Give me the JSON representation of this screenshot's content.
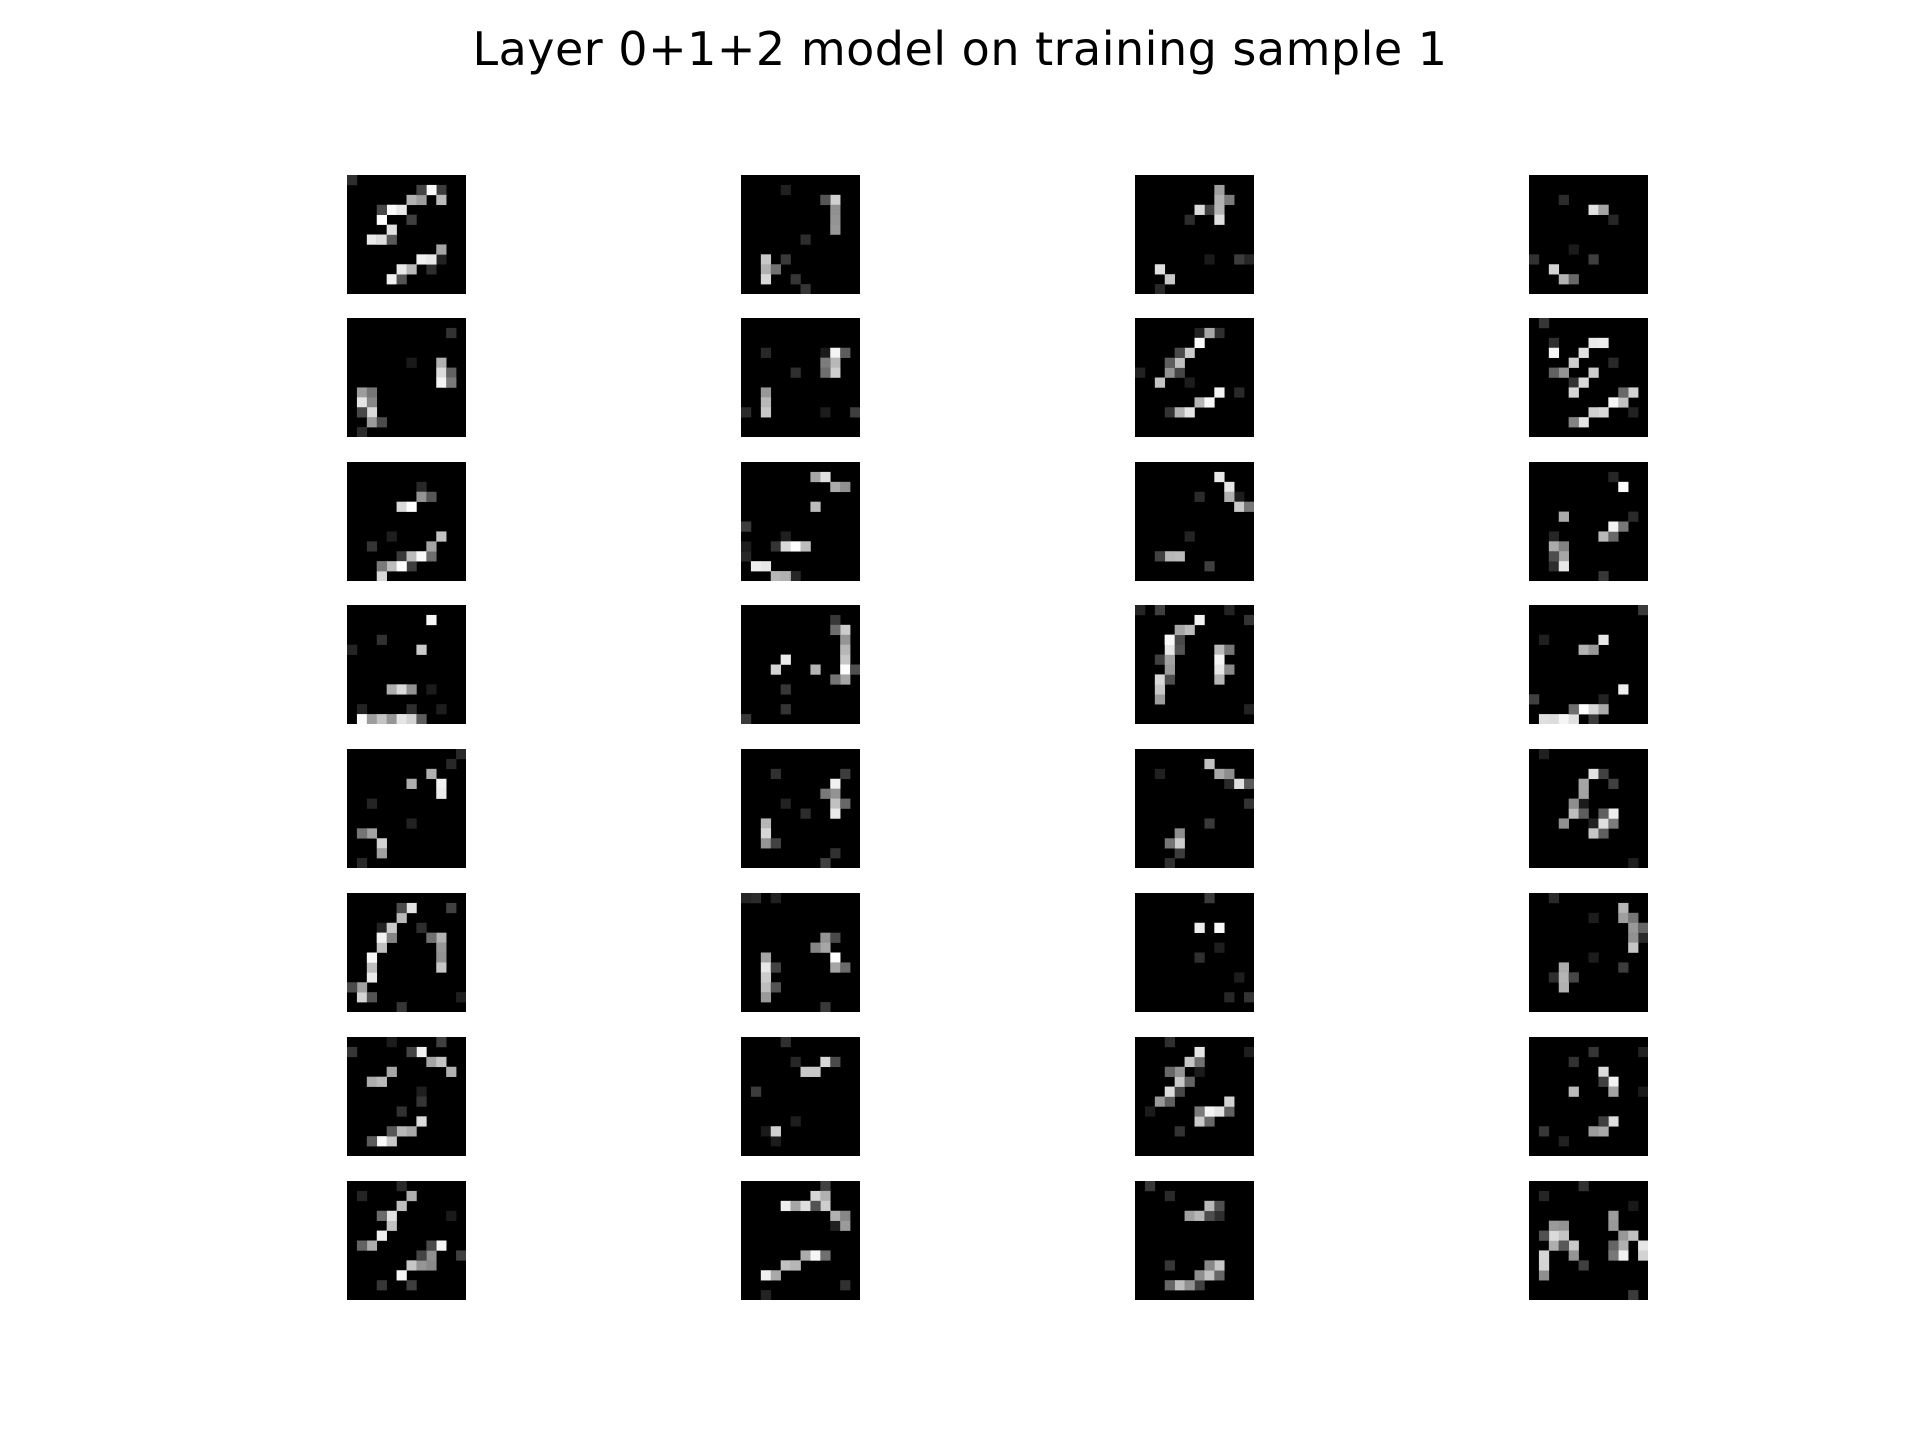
{
  "figure": {
    "title": "Layer 0+1+2 model on training sample 1",
    "layout": {
      "rows": 8,
      "cols": 4
    },
    "image_style": {
      "background": "#000000",
      "colormap": "gray",
      "pixel_resolution": 12
    },
    "panels": [
      {
        "row": 0,
        "col": 0,
        "strokes": [
          [
            [
              3,
              4
            ],
            [
              8,
              1
            ]
          ],
          [
            [
              4,
              10
            ],
            [
              9,
              7
            ]
          ],
          [
            [
              2,
              6
            ],
            [
              4,
              5
            ]
          ]
        ],
        "dots": [
          [
            9,
            2
          ]
        ]
      },
      {
        "row": 0,
        "col": 1,
        "strokes": [
          [
            [
              9,
              2
            ],
            [
              9,
              5
            ]
          ],
          [
            [
              2,
              8
            ],
            [
              2,
              10
            ]
          ]
        ],
        "dots": []
      },
      {
        "row": 0,
        "col": 2,
        "strokes": [
          [
            [
              8,
              1
            ],
            [
              8,
              4
            ]
          ],
          [
            [
              2,
              9
            ],
            [
              3,
              10
            ]
          ]
        ],
        "dots": [
          [
            6,
            3
          ]
        ]
      },
      {
        "row": 0,
        "col": 3,
        "strokes": [
          [
            [
              6,
              3
            ],
            [
              7,
              3
            ]
          ],
          [
            [
              2,
              9
            ],
            [
              3,
              10
            ]
          ]
        ],
        "dots": []
      },
      {
        "row": 1,
        "col": 0,
        "strokes": [
          [
            [
              9,
              4
            ],
            [
              9,
              6
            ]
          ],
          [
            [
              1,
              7
            ],
            [
              2,
              10
            ]
          ]
        ],
        "dots": []
      },
      {
        "row": 1,
        "col": 1,
        "strokes": [
          [
            [
              9,
              3
            ],
            [
              9,
              5
            ]
          ],
          [
            [
              2,
              7
            ],
            [
              2,
              9
            ]
          ]
        ],
        "dots": []
      },
      {
        "row": 1,
        "col": 2,
        "strokes": [
          [
            [
              2,
              6
            ],
            [
              7,
              1
            ]
          ],
          [
            [
              4,
              9
            ],
            [
              8,
              7
            ]
          ]
        ],
        "dots": []
      },
      {
        "row": 1,
        "col": 3,
        "strokes": [
          [
            [
              3,
              5
            ],
            [
              6,
              2
            ]
          ],
          [
            [
              5,
              10
            ],
            [
              10,
              7
            ]
          ],
          [
            [
              4,
              7
            ],
            [
              6,
              5
            ]
          ]
        ],
        "dots": [
          [
            7,
            2
          ],
          [
            2,
            3
          ]
        ]
      },
      {
        "row": 2,
        "col": 0,
        "strokes": [
          [
            [
              3,
              11
            ],
            [
              8,
              8
            ]
          ],
          [
            [
              5,
              4
            ],
            [
              7,
              3
            ]
          ]
        ],
        "dots": [
          [
            9,
            7
          ]
        ]
      },
      {
        "row": 2,
        "col": 1,
        "strokes": [
          [
            [
              7,
              1
            ],
            [
              10,
              2
            ]
          ],
          [
            [
              1,
              10
            ],
            [
              4,
              11
            ]
          ],
          [
            [
              4,
              8
            ],
            [
              6,
              8
            ]
          ]
        ],
        "dots": [
          [
            7,
            4
          ]
        ]
      },
      {
        "row": 2,
        "col": 2,
        "strokes": [
          [
            [
              8,
              1
            ],
            [
              10,
              4
            ]
          ],
          [
            [
              3,
              9
            ],
            [
              4,
              9
            ]
          ]
        ],
        "dots": []
      },
      {
        "row": 2,
        "col": 3,
        "strokes": [
          [
            [
              7,
              7
            ],
            [
              8,
              6
            ]
          ],
          [
            [
              2,
              8
            ],
            [
              3,
              10
            ]
          ]
        ],
        "dots": [
          [
            9,
            2
          ],
          [
            3,
            5
          ]
        ]
      },
      {
        "row": 3,
        "col": 0,
        "strokes": [
          [
            [
              1,
              11
            ],
            [
              6,
              11
            ]
          ],
          [
            [
              4,
              8
            ],
            [
              6,
              8
            ]
          ]
        ],
        "dots": [
          [
            7,
            4
          ],
          [
            8,
            1
          ]
        ]
      },
      {
        "row": 3,
        "col": 1,
        "strokes": [
          [
            [
              10,
              2
            ],
            [
              10,
              7
            ]
          ],
          [
            [
              3,
              6
            ],
            [
              4,
              5
            ]
          ]
        ],
        "dots": [
          [
            7,
            6
          ]
        ]
      },
      {
        "row": 3,
        "col": 2,
        "strokes": [
          [
            [
              2,
              9
            ],
            [
              3,
              3
            ]
          ],
          [
            [
              3,
              3
            ],
            [
              6,
              1
            ]
          ],
          [
            [
              8,
              4
            ],
            [
              8,
              7
            ]
          ]
        ],
        "dots": []
      },
      {
        "row": 3,
        "col": 3,
        "strokes": [
          [
            [
              1,
              11
            ],
            [
              7,
              10
            ]
          ],
          [
            [
              5,
              4
            ],
            [
              7,
              3
            ]
          ]
        ],
        "dots": [
          [
            9,
            8
          ]
        ]
      },
      {
        "row": 4,
        "col": 0,
        "strokes": [
          [
            [
              8,
              2
            ],
            [
              9,
              4
            ]
          ],
          [
            [
              2,
              8
            ],
            [
              3,
              10
            ]
          ]
        ],
        "dots": [
          [
            6,
            3
          ]
        ]
      },
      {
        "row": 4,
        "col": 1,
        "strokes": [
          [
            [
              9,
              3
            ],
            [
              9,
              6
            ]
          ],
          [
            [
              2,
              7
            ],
            [
              2,
              9
            ]
          ]
        ],
        "dots": []
      },
      {
        "row": 4,
        "col": 2,
        "strokes": [
          [
            [
              7,
              1
            ],
            [
              10,
              3
            ]
          ],
          [
            [
              4,
              8
            ],
            [
              4,
              9
            ]
          ]
        ],
        "dots": []
      },
      {
        "row": 4,
        "col": 3,
        "strokes": [
          [
            [
              3,
              7
            ],
            [
              6,
              2
            ]
          ],
          [
            [
              6,
              8
            ],
            [
              8,
              6
            ]
          ]
        ],
        "dots": []
      },
      {
        "row": 5,
        "col": 0,
        "strokes": [
          [
            [
              1,
              10
            ],
            [
              3,
              4
            ]
          ],
          [
            [
              3,
              4
            ],
            [
              6,
              1
            ]
          ],
          [
            [
              9,
              4
            ],
            [
              9,
              7
            ]
          ]
        ],
        "dots": []
      },
      {
        "row": 5,
        "col": 1,
        "strokes": [
          [
            [
              2,
              6
            ],
            [
              2,
              10
            ]
          ],
          [
            [
              8,
              4
            ],
            [
              9,
              7
            ]
          ]
        ],
        "dots": []
      },
      {
        "row": 5,
        "col": 2,
        "strokes": [],
        "dots": [
          [
            6,
            3
          ],
          [
            8,
            3
          ]
        ]
      },
      {
        "row": 5,
        "col": 3,
        "strokes": [
          [
            [
              9,
              1
            ],
            [
              10,
              5
            ]
          ],
          [
            [
              3,
              7
            ],
            [
              3,
              9
            ]
          ]
        ],
        "dots": []
      },
      {
        "row": 6,
        "col": 0,
        "strokes": [
          [
            [
              3,
              10
            ],
            [
              7,
              8
            ]
          ],
          [
            [
              7,
              1
            ],
            [
              10,
              3
            ]
          ],
          [
            [
              2,
              4
            ],
            [
              4,
              3
            ]
          ]
        ],
        "dots": []
      },
      {
        "row": 6,
        "col": 1,
        "strokes": [
          [
            [
              6,
              3
            ],
            [
              8,
              2
            ]
          ]
        ],
        "dots": [
          [
            3,
            9
          ]
        ]
      },
      {
        "row": 6,
        "col": 2,
        "strokes": [
          [
            [
              2,
              6
            ],
            [
              6,
              1
            ]
          ],
          [
            [
              6,
              8
            ],
            [
              9,
              6
            ]
          ]
        ],
        "dots": []
      },
      {
        "row": 6,
        "col": 3,
        "strokes": [
          [
            [
              7,
              3
            ],
            [
              8,
              5
            ]
          ],
          [
            [
              6,
              9
            ],
            [
              8,
              8
            ]
          ]
        ],
        "dots": [
          [
            4,
            5
          ]
        ]
      },
      {
        "row": 7,
        "col": 0,
        "strokes": [
          [
            [
              2,
              6
            ],
            [
              6,
              1
            ]
          ],
          [
            [
              5,
              9
            ],
            [
              9,
              6
            ]
          ]
        ],
        "dots": []
      },
      {
        "row": 7,
        "col": 1,
        "strokes": [
          [
            [
              2,
              9
            ],
            [
              7,
              7
            ]
          ],
          [
            [
              4,
              2
            ],
            [
              8,
              1
            ]
          ],
          [
            [
              8,
              2
            ],
            [
              10,
              4
            ]
          ]
        ],
        "dots": []
      },
      {
        "row": 7,
        "col": 2,
        "strokes": [
          [
            [
              4,
              10
            ],
            [
              8,
              8
            ]
          ],
          [
            [
              5,
              3
            ],
            [
              7,
              2
            ]
          ]
        ],
        "dots": []
      },
      {
        "row": 7,
        "col": 3,
        "strokes": [
          [
            [
              1,
              9
            ],
            [
              2,
              4
            ]
          ],
          [
            [
              3,
              4
            ],
            [
              4,
              7
            ]
          ],
          [
            [
              8,
              3
            ],
            [
              9,
              7
            ]
          ],
          [
            [
              10,
              5
            ],
            [
              11,
              7
            ]
          ]
        ],
        "dots": []
      }
    ]
  }
}
